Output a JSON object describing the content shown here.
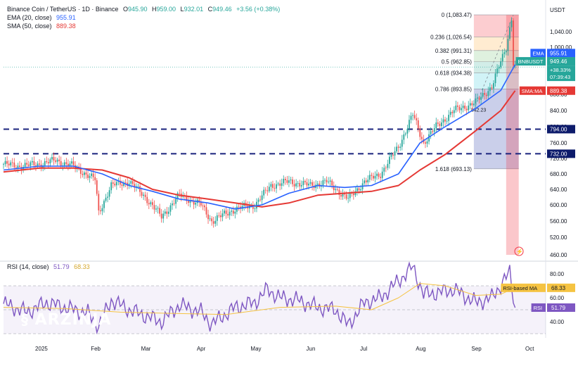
{
  "header": {
    "symbol": "Binance Coin / TetherUS · 1D · Binance",
    "ohlc": [
      {
        "label": "O",
        "value": "945.90"
      },
      {
        "label": "H",
        "value": "959.00"
      },
      {
        "label": "L",
        "value": "932.01"
      },
      {
        "label": "C",
        "value": "949.46"
      }
    ],
    "change": "+3.56 (+0.38%)",
    "ema_label": "EMA (20, close)",
    "ema_value": "955.91",
    "sma_label": "SMA (50, close)",
    "sma_value": "889.38"
  },
  "rsi_header": {
    "label": "RSI (14, close)",
    "rsi_value": "51.79",
    "ma_value": "68.33"
  },
  "currency": "USDT",
  "watermark": {
    "brand": "ARZINJA",
    "site": "arzinja.info"
  },
  "colors": {
    "up": "#26a69a",
    "down": "#ef5350",
    "ema": "#2962ff",
    "sma": "#e53935",
    "rsi": "#7e57c2",
    "rsi_ma": "#f5c342",
    "support": "#1a237e",
    "fib_text": "#131722"
  },
  "chart_data": [
    {
      "type": "candlestick",
      "title": "Binance Coin / TetherUS · 1D · Binance",
      "ylim": [
        460,
        1080
      ],
      "y_ticks": [
        460,
        520,
        560,
        600,
        640,
        680,
        720,
        760,
        800,
        840,
        880,
        1000,
        1040
      ],
      "x_ticks": [
        {
          "label": "2025",
          "date": "2025-01-01"
        },
        {
          "label": "Feb",
          "date": "2025-02-01"
        },
        {
          "label": "Mar",
          "date": "2025-03-01"
        },
        {
          "label": "Apr",
          "date": "2025-04-01"
        },
        {
          "label": "May",
          "date": "2025-05-01"
        },
        {
          "label": "Jun",
          "date": "2025-06-01"
        },
        {
          "label": "Jul",
          "date": "2025-07-01"
        },
        {
          "label": "Aug",
          "date": "2025-08-01"
        },
        {
          "label": "Sep",
          "date": "2025-09-01"
        },
        {
          "label": "Oct",
          "date": "2025-10-01"
        }
      ],
      "close_series": {
        "dates": [
          "2024-12-12",
          "2024-12-20",
          "2025-01-01",
          "2025-01-10",
          "2025-01-20",
          "2025-02-01",
          "2025-02-03",
          "2025-02-10",
          "2025-02-20",
          "2025-03-01",
          "2025-03-10",
          "2025-03-20",
          "2025-04-01",
          "2025-04-07",
          "2025-04-20",
          "2025-05-01",
          "2025-05-10",
          "2025-05-20",
          "2025-06-01",
          "2025-06-10",
          "2025-06-22",
          "2025-07-01",
          "2025-07-10",
          "2025-07-20",
          "2025-07-28",
          "2025-08-03",
          "2025-08-10",
          "2025-08-20",
          "2025-09-01",
          "2025-09-10",
          "2025-09-18",
          "2025-09-21",
          "2025-09-22",
          "2025-09-23"
        ],
        "values": [
          705,
          700,
          705,
          715,
          700,
          665,
          580,
          650,
          660,
          620,
          570,
          625,
          600,
          560,
          590,
          600,
          650,
          660,
          650,
          660,
          615,
          660,
          680,
          750,
          830,
          760,
          800,
          840,
          860,
          900,
          1000,
          1075,
          960,
          949
        ]
      },
      "ema20": {
        "dates": [
          "2024-12-12",
          "2025-01-01",
          "2025-01-20",
          "2025-02-05",
          "2025-02-20",
          "2025-03-05",
          "2025-03-20",
          "2025-04-05",
          "2025-04-20",
          "2025-05-05",
          "2025-05-20",
          "2025-06-05",
          "2025-06-20",
          "2025-07-05",
          "2025-07-20",
          "2025-08-01",
          "2025-08-15",
          "2025-09-01",
          "2025-09-15",
          "2025-09-23"
        ],
        "values": [
          690,
          700,
          700,
          680,
          650,
          635,
          615,
          605,
          590,
          600,
          630,
          650,
          645,
          650,
          680,
          760,
          800,
          845,
          890,
          955.91
        ]
      },
      "sma50": {
        "dates": [
          "2024-12-12",
          "2025-01-01",
          "2025-01-20",
          "2025-02-05",
          "2025-02-20",
          "2025-03-05",
          "2025-03-20",
          "2025-04-05",
          "2025-04-20",
          "2025-05-05",
          "2025-05-20",
          "2025-06-05",
          "2025-06-20",
          "2025-07-05",
          "2025-07-20",
          "2025-08-01",
          "2025-08-15",
          "2025-09-01",
          "2025-09-15",
          "2025-09-23"
        ],
        "values": [
          685,
          695,
          695,
          690,
          670,
          640,
          625,
          615,
          605,
          595,
          605,
          625,
          630,
          635,
          650,
          690,
          730,
          790,
          840,
          889.38
        ]
      },
      "horizontal_levels": [
        {
          "value": 794.0,
          "label": "794.00"
        },
        {
          "value": 732.0,
          "label": "732.00"
        }
      ],
      "fibonacci": [
        {
          "ratio": "0",
          "value": 1083.47
        },
        {
          "ratio": "0.236",
          "value": 1026.54
        },
        {
          "ratio": "0.382",
          "value": 991.31
        },
        {
          "ratio": "0.5",
          "value": 962.85
        },
        {
          "ratio": "0.618",
          "value": 934.38
        },
        {
          "ratio": "0.786",
          "value": 893.85
        },
        {
          "ratio": "1.618",
          "value": 693.13
        }
      ],
      "fib_extra_label": "842.23",
      "price_labels": [
        {
          "text": "EMA",
          "value_text": "955.91",
          "value": 955.91
        },
        {
          "text": "BNBUSDT",
          "value_text": "949.46",
          "value": 949.46,
          "sub": [
            "+38.33%",
            "07:39:43"
          ]
        },
        {
          "text": "SMA:MA",
          "value_text": "889.38",
          "value": 889.38
        }
      ]
    },
    {
      "type": "line",
      "title": "RSI (14, close)",
      "ylim": [
        30,
        90
      ],
      "y_ticks": [
        40,
        60,
        80
      ],
      "band": [
        30,
        70
      ],
      "series": [
        {
          "name": "RSI",
          "dates": [
            "2024-12-12",
            "2024-12-25",
            "2025-01-05",
            "2025-01-15",
            "2025-01-28",
            "2025-02-03",
            "2025-02-10",
            "2025-02-20",
            "2025-03-01",
            "2025-03-10",
            "2025-03-20",
            "2025-04-01",
            "2025-04-07",
            "2025-04-20",
            "2025-05-01",
            "2025-05-08",
            "2025-05-15",
            "2025-05-25",
            "2025-06-05",
            "2025-06-15",
            "2025-06-22",
            "2025-07-01",
            "2025-07-10",
            "2025-07-20",
            "2025-07-28",
            "2025-08-03",
            "2025-08-10",
            "2025-08-20",
            "2025-09-01",
            "2025-09-10",
            "2025-09-18",
            "2025-09-20",
            "2025-09-23"
          ],
          "values": [
            55,
            48,
            56,
            52,
            47,
            36,
            58,
            50,
            45,
            40,
            54,
            48,
            38,
            52,
            56,
            67,
            60,
            58,
            52,
            50,
            37,
            56,
            60,
            74,
            86,
            63,
            64,
            67,
            56,
            60,
            77,
            81,
            51.79
          ]
        },
        {
          "name": "RSI-based MA",
          "dates": [
            "2024-12-12",
            "2025-01-15",
            "2025-02-15",
            "2025-03-15",
            "2025-04-15",
            "2025-05-15",
            "2025-06-15",
            "2025-07-05",
            "2025-07-20",
            "2025-08-01",
            "2025-08-15",
            "2025-09-01",
            "2025-09-15",
            "2025-09-23"
          ],
          "values": [
            52,
            51,
            48,
            47,
            46,
            52,
            53,
            50,
            60,
            72,
            70,
            62,
            63,
            68.33
          ]
        }
      ],
      "price_labels": [
        {
          "text": "RSI-based MA",
          "value_text": "68.33",
          "value": 68.33
        },
        {
          "text": "RSI",
          "value_text": "51.79",
          "value": 51.79
        }
      ]
    }
  ]
}
